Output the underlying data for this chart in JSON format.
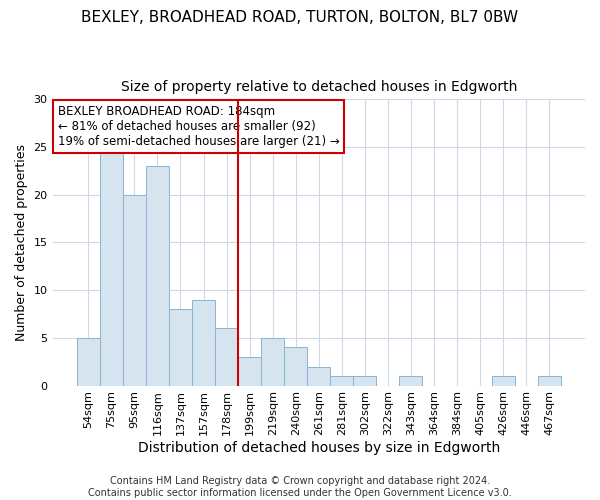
{
  "title": "BEXLEY, BROADHEAD ROAD, TURTON, BOLTON, BL7 0BW",
  "subtitle": "Size of property relative to detached houses in Edgworth",
  "xlabel": "Distribution of detached houses by size in Edgworth",
  "ylabel": "Number of detached properties",
  "categories": [
    "54sqm",
    "75sqm",
    "95sqm",
    "116sqm",
    "137sqm",
    "157sqm",
    "178sqm",
    "199sqm",
    "219sqm",
    "240sqm",
    "261sqm",
    "281sqm",
    "302sqm",
    "322sqm",
    "343sqm",
    "364sqm",
    "384sqm",
    "405sqm",
    "426sqm",
    "446sqm",
    "467sqm"
  ],
  "values": [
    5,
    25,
    20,
    23,
    8,
    9,
    6,
    3,
    5,
    4,
    2,
    1,
    1,
    0,
    1,
    0,
    0,
    0,
    1,
    0,
    1
  ],
  "bar_color": "#d6e4f0",
  "bar_edge_color": "#8ab4d4",
  "vline_color": "#cc0000",
  "annotation_text": "BEXLEY BROADHEAD ROAD: 184sqm\n← 81% of detached houses are smaller (92)\n19% of semi-detached houses are larger (21) →",
  "annotation_box_color": "white",
  "annotation_box_edge": "#cc0000",
  "ylim": [
    0,
    30
  ],
  "yticks": [
    0,
    5,
    10,
    15,
    20,
    25,
    30
  ],
  "background_color": "#ffffff",
  "grid_color": "#d0d8e8",
  "footer": "Contains HM Land Registry data © Crown copyright and database right 2024.\nContains public sector information licensed under the Open Government Licence v3.0.",
  "title_fontsize": 11,
  "subtitle_fontsize": 10,
  "xlabel_fontsize": 10,
  "ylabel_fontsize": 9,
  "tick_fontsize": 8,
  "footer_fontsize": 7,
  "annotation_fontsize": 8.5
}
